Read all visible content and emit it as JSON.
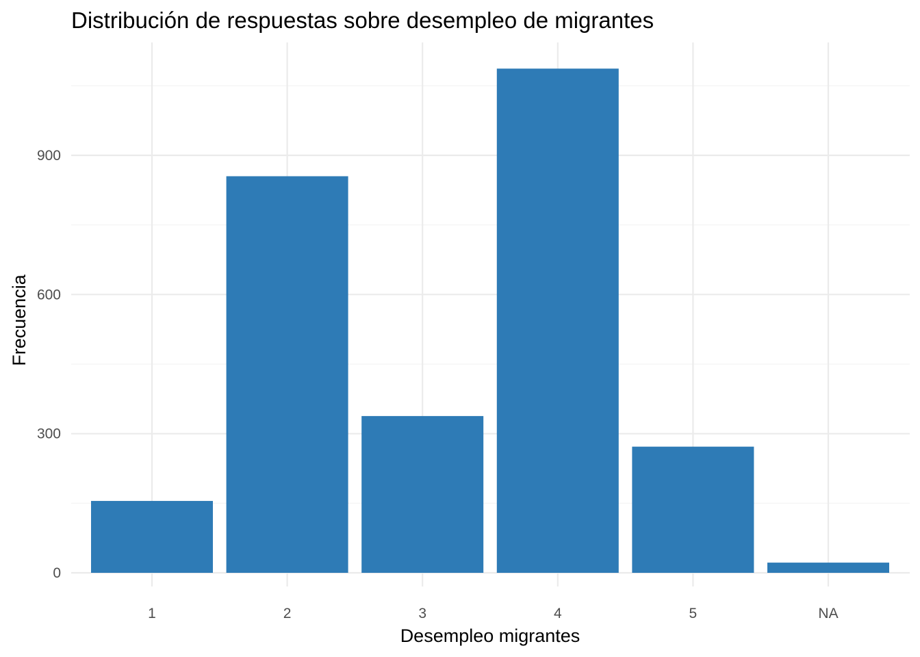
{
  "chart_data": {
    "type": "bar",
    "title": "Distribución de respuestas sobre desempleo de migrantes",
    "xlabel": "Desempleo migrantes",
    "ylabel": "Frecuencia",
    "categories": [
      "1",
      "2",
      "3",
      "4",
      "5",
      "NA"
    ],
    "values": [
      155,
      855,
      338,
      1087,
      272,
      22
    ],
    "ylim": [
      0,
      1141
    ],
    "yticks": [
      0,
      300,
      600,
      900
    ],
    "y_minor_ticks": [
      150,
      450,
      750,
      1050
    ],
    "grid": true,
    "legend": "none",
    "bar_color": "#2e7bb6"
  }
}
